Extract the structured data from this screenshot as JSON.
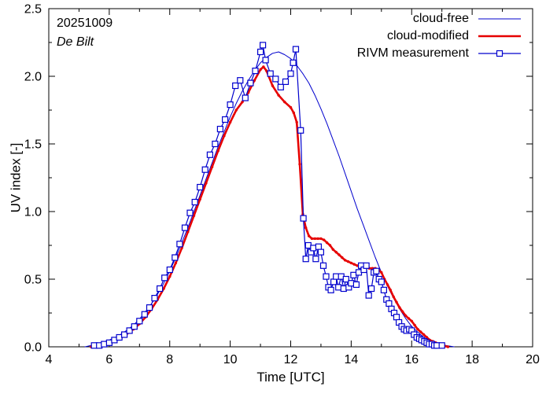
{
  "colors": {
    "blue": "#0000cd",
    "red": "#e60000",
    "axis": "#000000",
    "background": "#ffffff"
  },
  "chart_data": {
    "type": "line",
    "title": "",
    "annotations": {
      "date": "20251009",
      "station": "De Bilt"
    },
    "xlabel": "Time  [UTC]",
    "ylabel": "UV index  [-]",
    "xlim": [
      4,
      20
    ],
    "ylim": [
      0,
      2.5
    ],
    "xticks": [
      4,
      6,
      8,
      10,
      12,
      14,
      16,
      18,
      20
    ],
    "xtick_labels": [
      "4",
      "6",
      "8",
      "10",
      "12",
      "14",
      "16",
      "18",
      "20"
    ],
    "xtick_minor_step": 1,
    "yticks": [
      0,
      0.5,
      1,
      1.5,
      2,
      2.5
    ],
    "ytick_labels": [
      "0.0",
      "0.5",
      "1.0",
      "1.5",
      "2.0",
      "2.5"
    ],
    "ytick_minor_step": 0.25,
    "grid": false,
    "legend_position": "top-right-inside",
    "series": [
      {
        "name": "cloud-free",
        "color": "blue",
        "line_width": 1,
        "marker": "none",
        "marker_size": 0,
        "points": [
          [
            5.2,
            0
          ],
          [
            5.4,
            0.01
          ],
          [
            5.6,
            0.02
          ],
          [
            5.8,
            0.035
          ],
          [
            6,
            0.05
          ],
          [
            6.2,
            0.07
          ],
          [
            6.4,
            0.095
          ],
          [
            6.6,
            0.125
          ],
          [
            6.8,
            0.16
          ],
          [
            7,
            0.205
          ],
          [
            7.2,
            0.26
          ],
          [
            7.4,
            0.32
          ],
          [
            7.6,
            0.39
          ],
          [
            7.8,
            0.47
          ],
          [
            8,
            0.56
          ],
          [
            8.2,
            0.66
          ],
          [
            8.4,
            0.77
          ],
          [
            8.6,
            0.88
          ],
          [
            8.8,
            1.0
          ],
          [
            9,
            1.12
          ],
          [
            9.2,
            1.24
          ],
          [
            9.4,
            1.36
          ],
          [
            9.6,
            1.48
          ],
          [
            9.8,
            1.59
          ],
          [
            10,
            1.7
          ],
          [
            10.2,
            1.8
          ],
          [
            10.4,
            1.89
          ],
          [
            10.6,
            1.97
          ],
          [
            10.8,
            2.04
          ],
          [
            11,
            2.1
          ],
          [
            11.2,
            2.14
          ],
          [
            11.4,
            2.17
          ],
          [
            11.6,
            2.18
          ],
          [
            11.8,
            2.16
          ],
          [
            12,
            2.13
          ],
          [
            12.2,
            2.08
          ],
          [
            12.4,
            2.02
          ],
          [
            12.6,
            1.95
          ],
          [
            12.8,
            1.86
          ],
          [
            13,
            1.76
          ],
          [
            13.2,
            1.65
          ],
          [
            13.4,
            1.53
          ],
          [
            13.6,
            1.41
          ],
          [
            13.8,
            1.28
          ],
          [
            14,
            1.15
          ],
          [
            14.2,
            1.02
          ],
          [
            14.4,
            0.9
          ],
          [
            14.6,
            0.78
          ],
          [
            14.8,
            0.66
          ],
          [
            15,
            0.55
          ],
          [
            15.2,
            0.45
          ],
          [
            15.4,
            0.36
          ],
          [
            15.6,
            0.28
          ],
          [
            15.8,
            0.21
          ],
          [
            16,
            0.15
          ],
          [
            16.2,
            0.11
          ],
          [
            16.4,
            0.07
          ],
          [
            16.6,
            0.045
          ],
          [
            16.8,
            0.03
          ],
          [
            17,
            0.015
          ],
          [
            17.2,
            0.007
          ],
          [
            17.4,
            0
          ]
        ]
      },
      {
        "name": "cloud-modified",
        "color": "red",
        "line_width": 2.6,
        "marker": "dot",
        "marker_size": 1.7,
        "points": [
          [
            5.4,
            0
          ],
          [
            5.6,
            0.01
          ],
          [
            5.8,
            0.02
          ],
          [
            6,
            0.035
          ],
          [
            6.2,
            0.05
          ],
          [
            6.4,
            0.07
          ],
          [
            6.6,
            0.1
          ],
          [
            6.8,
            0.13
          ],
          [
            7,
            0.17
          ],
          [
            7.2,
            0.22
          ],
          [
            7.4,
            0.28
          ],
          [
            7.6,
            0.35
          ],
          [
            7.8,
            0.43
          ],
          [
            8,
            0.52
          ],
          [
            8.2,
            0.62
          ],
          [
            8.4,
            0.73
          ],
          [
            8.6,
            0.85
          ],
          [
            8.8,
            0.97
          ],
          [
            9,
            1.09
          ],
          [
            9.2,
            1.21
          ],
          [
            9.4,
            1.33
          ],
          [
            9.6,
            1.45
          ],
          [
            9.8,
            1.56
          ],
          [
            10,
            1.66
          ],
          [
            10.2,
            1.75
          ],
          [
            10.4,
            1.81
          ],
          [
            10.6,
            1.88
          ],
          [
            10.8,
            1.97
          ],
          [
            11,
            2.05
          ],
          [
            11.1,
            2.07
          ],
          [
            11.2,
            2.04
          ],
          [
            11.4,
            1.93
          ],
          [
            11.6,
            1.86
          ],
          [
            11.8,
            1.81
          ],
          [
            12,
            1.77
          ],
          [
            12.1,
            1.73
          ],
          [
            12.2,
            1.66
          ],
          [
            12.3,
            1.35
          ],
          [
            12.4,
            0.98
          ],
          [
            12.5,
            0.88
          ],
          [
            12.6,
            0.82
          ],
          [
            12.7,
            0.8
          ],
          [
            12.8,
            0.8
          ],
          [
            12.9,
            0.8
          ],
          [
            13,
            0.8
          ],
          [
            13.1,
            0.79
          ],
          [
            13.2,
            0.77
          ],
          [
            13.3,
            0.75
          ],
          [
            13.4,
            0.72
          ],
          [
            13.5,
            0.7
          ],
          [
            13.6,
            0.68
          ],
          [
            13.7,
            0.66
          ],
          [
            13.8,
            0.64
          ],
          [
            13.9,
            0.63
          ],
          [
            14,
            0.62
          ],
          [
            14.1,
            0.61
          ],
          [
            14.2,
            0.6
          ],
          [
            14.3,
            0.6
          ],
          [
            14.4,
            0.59
          ],
          [
            14.5,
            0.59
          ],
          [
            14.6,
            0.58
          ],
          [
            14.7,
            0.58
          ],
          [
            14.8,
            0.58
          ],
          [
            14.9,
            0.57
          ],
          [
            15,
            0.55
          ],
          [
            15.1,
            0.5
          ],
          [
            15.2,
            0.46
          ],
          [
            15.3,
            0.42
          ],
          [
            15.4,
            0.37
          ],
          [
            15.5,
            0.33
          ],
          [
            15.6,
            0.29
          ],
          [
            15.7,
            0.26
          ],
          [
            15.8,
            0.23
          ],
          [
            15.9,
            0.21
          ],
          [
            16,
            0.19
          ],
          [
            16.1,
            0.16
          ],
          [
            16.2,
            0.13
          ],
          [
            16.3,
            0.11
          ],
          [
            16.4,
            0.09
          ],
          [
            16.5,
            0.07
          ],
          [
            16.6,
            0.05
          ],
          [
            16.7,
            0.04
          ],
          [
            16.8,
            0.03
          ],
          [
            16.9,
            0.02
          ],
          [
            17,
            0.01
          ],
          [
            17.1,
            0.005
          ],
          [
            17.2,
            0
          ]
        ]
      },
      {
        "name": "RIVM measurement",
        "color": "blue",
        "line_width": 1.2,
        "marker": "open-square",
        "marker_size": 7,
        "points": [
          [
            5.5,
            0.01
          ],
          [
            5.67,
            0.01
          ],
          [
            5.83,
            0.02
          ],
          [
            6,
            0.03
          ],
          [
            6.17,
            0.05
          ],
          [
            6.33,
            0.07
          ],
          [
            6.5,
            0.09
          ],
          [
            6.67,
            0.12
          ],
          [
            6.83,
            0.15
          ],
          [
            7,
            0.19
          ],
          [
            7.17,
            0.24
          ],
          [
            7.33,
            0.29
          ],
          [
            7.5,
            0.36
          ],
          [
            7.67,
            0.43
          ],
          [
            7.83,
            0.51
          ],
          [
            8,
            0.57
          ],
          [
            8.17,
            0.66
          ],
          [
            8.33,
            0.76
          ],
          [
            8.5,
            0.88
          ],
          [
            8.67,
            0.99
          ],
          [
            8.83,
            1.07
          ],
          [
            9,
            1.18
          ],
          [
            9.17,
            1.31
          ],
          [
            9.33,
            1.42
          ],
          [
            9.5,
            1.5
          ],
          [
            9.67,
            1.61
          ],
          [
            9.83,
            1.68
          ],
          [
            10,
            1.79
          ],
          [
            10.17,
            1.93
          ],
          [
            10.33,
            1.97
          ],
          [
            10.5,
            1.84
          ],
          [
            10.67,
            1.95
          ],
          [
            10.83,
            2.04
          ],
          [
            11,
            2.18
          ],
          [
            11.08,
            2.23
          ],
          [
            11.17,
            2.12
          ],
          [
            11.33,
            2.02
          ],
          [
            11.5,
            1.98
          ],
          [
            11.67,
            1.92
          ],
          [
            11.83,
            1.96
          ],
          [
            12,
            2.02
          ],
          [
            12.08,
            2.1
          ],
          [
            12.17,
            2.2
          ],
          [
            12.33,
            1.6
          ],
          [
            12.42,
            0.95
          ],
          [
            12.5,
            0.65
          ],
          [
            12.58,
            0.75
          ],
          [
            12.67,
            0.7
          ],
          [
            12.75,
            0.73
          ],
          [
            12.83,
            0.65
          ],
          [
            12.92,
            0.74
          ],
          [
            13,
            0.7
          ],
          [
            13.08,
            0.6
          ],
          [
            13.17,
            0.52
          ],
          [
            13.25,
            0.44
          ],
          [
            13.33,
            0.42
          ],
          [
            13.42,
            0.48
          ],
          [
            13.5,
            0.52
          ],
          [
            13.58,
            0.44
          ],
          [
            13.67,
            0.52
          ],
          [
            13.75,
            0.43
          ],
          [
            13.83,
            0.5
          ],
          [
            13.92,
            0.44
          ],
          [
            14,
            0.47
          ],
          [
            14.08,
            0.53
          ],
          [
            14.17,
            0.46
          ],
          [
            14.25,
            0.55
          ],
          [
            14.33,
            0.6
          ],
          [
            14.42,
            0.57
          ],
          [
            14.5,
            0.6
          ],
          [
            14.58,
            0.38
          ],
          [
            14.67,
            0.43
          ],
          [
            14.75,
            0.55
          ],
          [
            14.83,
            0.56
          ],
          [
            14.92,
            0.5
          ],
          [
            15,
            0.48
          ],
          [
            15.08,
            0.42
          ],
          [
            15.17,
            0.35
          ],
          [
            15.25,
            0.32
          ],
          [
            15.33,
            0.28
          ],
          [
            15.42,
            0.25
          ],
          [
            15.5,
            0.22
          ],
          [
            15.58,
            0.18
          ],
          [
            15.67,
            0.15
          ],
          [
            15.75,
            0.13
          ],
          [
            15.83,
            0.12
          ],
          [
            15.92,
            0.13
          ],
          [
            16,
            0.12
          ],
          [
            16.08,
            0.09
          ],
          [
            16.17,
            0.07
          ],
          [
            16.25,
            0.06
          ],
          [
            16.33,
            0.05
          ],
          [
            16.42,
            0.04
          ],
          [
            16.5,
            0.03
          ],
          [
            16.58,
            0.02
          ],
          [
            16.67,
            0.02
          ],
          [
            16.75,
            0.01
          ],
          [
            16.83,
            0.01
          ],
          [
            17,
            0.01
          ]
        ]
      }
    ]
  }
}
